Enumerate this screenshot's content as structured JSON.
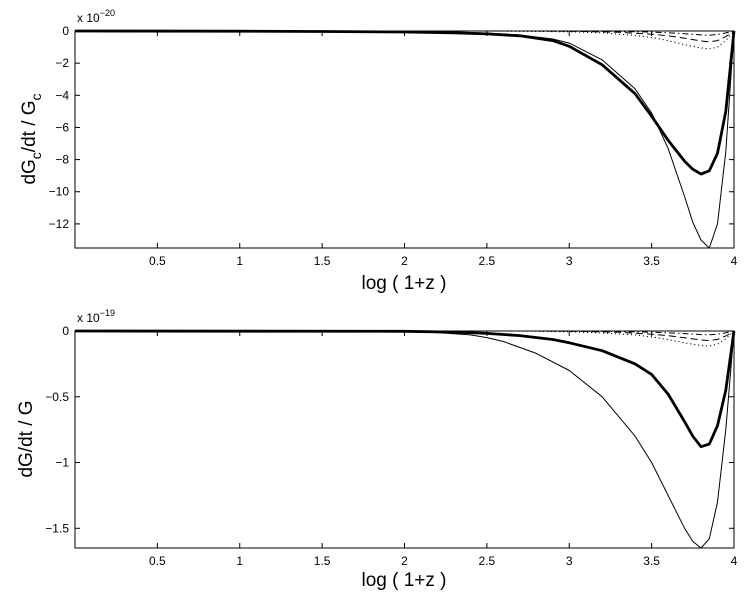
{
  "chart_data": [
    {
      "type": "line",
      "xlabel": "log ( 1+z )",
      "ylabel_main": "dG",
      "ylabel_sub1": "c",
      "ylabel_mid": "/dt / G",
      "ylabel_sub2": "c",
      "exponent_prefix": "x 10",
      "exponent_power": "−20",
      "xlim": [
        0,
        4
      ],
      "ylim": [
        -13.5,
        0
      ],
      "xticks": [
        0.5,
        1,
        1.5,
        2,
        2.5,
        3,
        3.5,
        4
      ],
      "xtick_labels": [
        "0.5",
        "1",
        "1.5",
        "2",
        "2.5",
        "3",
        "3.5",
        "4"
      ],
      "yticks": [
        0,
        -2,
        -4,
        -6,
        -8,
        -10,
        -12
      ],
      "ytick_labels": [
        "0",
        "−2",
        "−4",
        "−6",
        "−8",
        "−10",
        "−12"
      ],
      "grid": false,
      "series": [
        {
          "style": "thin-solid",
          "x": [
            0,
            1,
            1.5,
            2,
            2.3,
            2.5,
            2.7,
            2.9,
            3.0,
            3.2,
            3.4,
            3.5,
            3.6,
            3.7,
            3.75,
            3.8,
            3.85,
            3.9,
            3.95,
            4.0
          ],
          "y": [
            0,
            0,
            -0.01,
            -0.03,
            -0.07,
            -0.13,
            -0.25,
            -0.5,
            -0.75,
            -1.8,
            -3.6,
            -5.1,
            -7.3,
            -10.3,
            -11.9,
            -13.0,
            -13.5,
            -12.0,
            -7.5,
            0
          ]
        },
        {
          "style": "thick-solid",
          "x": [
            0,
            1,
            1.5,
            2,
            2.3,
            2.5,
            2.7,
            2.9,
            3.0,
            3.2,
            3.4,
            3.5,
            3.6,
            3.7,
            3.75,
            3.8,
            3.85,
            3.9,
            3.95,
            4.0
          ],
          "y": [
            0,
            -0.01,
            -0.03,
            -0.06,
            -0.11,
            -0.18,
            -0.3,
            -0.6,
            -0.95,
            -2.1,
            -3.9,
            -5.3,
            -6.8,
            -8.1,
            -8.6,
            -8.9,
            -8.7,
            -7.6,
            -5.0,
            0
          ]
        },
        {
          "style": "dotted",
          "x": [
            0,
            2.5,
            3.0,
            3.2,
            3.4,
            3.5,
            3.6,
            3.7,
            3.8,
            3.85,
            3.9,
            3.95,
            4.0
          ],
          "y": [
            0,
            0,
            -0.05,
            -0.12,
            -0.28,
            -0.4,
            -0.6,
            -0.85,
            -1.05,
            -1.12,
            -1.0,
            -0.6,
            0
          ]
        },
        {
          "style": "dashed",
          "x": [
            0,
            2.8,
            3.1,
            3.3,
            3.5,
            3.6,
            3.7,
            3.8,
            3.85,
            3.9,
            3.95,
            4.0
          ],
          "y": [
            0,
            0,
            -0.03,
            -0.08,
            -0.2,
            -0.3,
            -0.45,
            -0.62,
            -0.67,
            -0.6,
            -0.35,
            0
          ]
        },
        {
          "style": "dash-dot",
          "x": [
            0,
            3.0,
            3.3,
            3.5,
            3.6,
            3.7,
            3.8,
            3.85,
            3.9,
            3.95,
            4.0
          ],
          "y": [
            0,
            0,
            -0.03,
            -0.07,
            -0.11,
            -0.17,
            -0.24,
            -0.26,
            -0.22,
            -0.12,
            0
          ]
        }
      ]
    },
    {
      "type": "line",
      "xlabel": "log ( 1+z )",
      "ylabel_main": "dG/dt / G",
      "ylabel_sub1": "",
      "ylabel_mid": "",
      "ylabel_sub2": "",
      "exponent_prefix": "x 10",
      "exponent_power": "−19",
      "xlim": [
        0,
        4
      ],
      "ylim": [
        -1.65,
        0
      ],
      "xticks": [
        0.5,
        1,
        1.5,
        2,
        2.5,
        3,
        3.5,
        4
      ],
      "xtick_labels": [
        "0.5",
        "1",
        "1.5",
        "2",
        "2.5",
        "3",
        "3.5",
        "4"
      ],
      "yticks": [
        0,
        -0.5,
        -1,
        -1.5
      ],
      "ytick_labels": [
        "0",
        "−0.5",
        "−1",
        "−1.5"
      ],
      "grid": false,
      "series": [
        {
          "style": "thin-solid",
          "x": [
            0,
            1.5,
            2.0,
            2.2,
            2.4,
            2.5,
            2.6,
            2.8,
            3.0,
            3.2,
            3.4,
            3.5,
            3.6,
            3.7,
            3.75,
            3.8,
            3.85,
            3.9,
            3.95,
            4.0
          ],
          "y": [
            0,
            0,
            -0.005,
            -0.012,
            -0.03,
            -0.05,
            -0.08,
            -0.17,
            -0.3,
            -0.5,
            -0.8,
            -1.0,
            -1.25,
            -1.5,
            -1.6,
            -1.65,
            -1.58,
            -1.3,
            -0.75,
            0
          ]
        },
        {
          "style": "thick-solid",
          "x": [
            0,
            2.0,
            2.3,
            2.5,
            2.7,
            2.9,
            3.0,
            3.2,
            3.4,
            3.5,
            3.6,
            3.7,
            3.75,
            3.8,
            3.85,
            3.9,
            3.95,
            4.0
          ],
          "y": [
            0,
            -0.002,
            -0.008,
            -0.018,
            -0.035,
            -0.065,
            -0.09,
            -0.15,
            -0.25,
            -0.33,
            -0.48,
            -0.69,
            -0.8,
            -0.88,
            -0.86,
            -0.72,
            -0.45,
            0
          ]
        },
        {
          "style": "dotted",
          "x": [
            0,
            2.7,
            3.0,
            3.2,
            3.4,
            3.5,
            3.6,
            3.7,
            3.8,
            3.85,
            3.9,
            3.95,
            4.0
          ],
          "y": [
            0,
            0,
            -0.006,
            -0.015,
            -0.03,
            -0.045,
            -0.065,
            -0.09,
            -0.11,
            -0.115,
            -0.1,
            -0.06,
            0
          ]
        },
        {
          "style": "dashed",
          "x": [
            0,
            2.8,
            3.1,
            3.3,
            3.5,
            3.6,
            3.7,
            3.8,
            3.85,
            3.9,
            3.95,
            4.0
          ],
          "y": [
            0,
            0,
            -0.004,
            -0.01,
            -0.024,
            -0.036,
            -0.052,
            -0.068,
            -0.072,
            -0.064,
            -0.038,
            0
          ]
        },
        {
          "style": "dash-dot",
          "x": [
            0,
            3.0,
            3.3,
            3.5,
            3.6,
            3.7,
            3.8,
            3.85,
            3.9,
            3.95,
            4.0
          ],
          "y": [
            0,
            0,
            -0.004,
            -0.009,
            -0.014,
            -0.02,
            -0.027,
            -0.029,
            -0.025,
            -0.014,
            0
          ]
        }
      ]
    }
  ]
}
